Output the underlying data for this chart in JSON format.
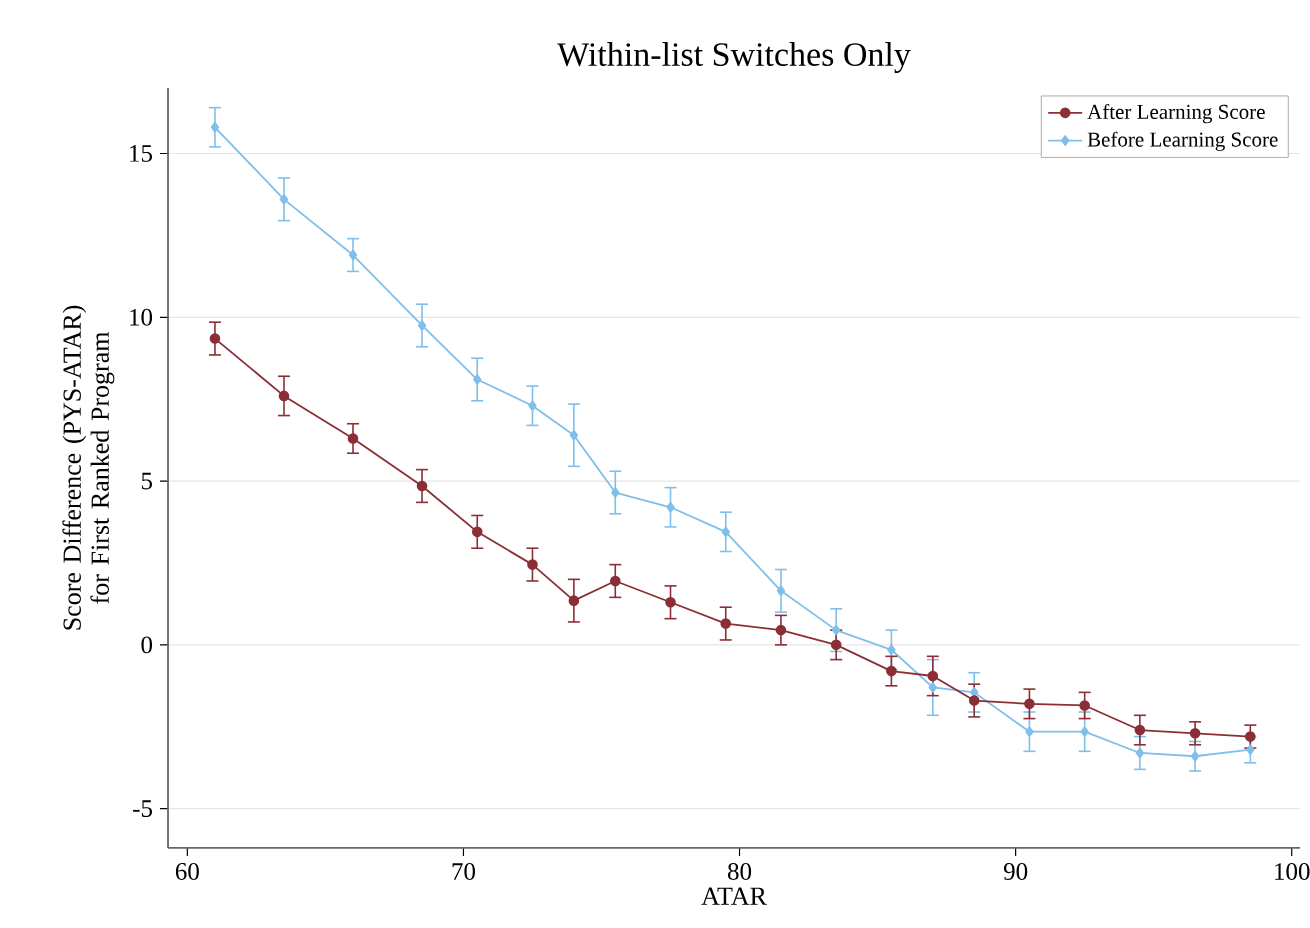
{
  "chart_data": {
    "type": "line",
    "title": "Within-list Switches Only",
    "xlabel": "ATAR",
    "ylabel": "Score Difference (PYS-ATAR) for First Ranked Program",
    "x": [
      61,
      63.5,
      66,
      68.5,
      70.5,
      72.5,
      74,
      75.5,
      77.5,
      79.5,
      81.5,
      83.5,
      85.5,
      87,
      88.5,
      90.5,
      92.5,
      94.5,
      96.5,
      98.5
    ],
    "series": [
      {
        "name": "After Learning Score",
        "color": "#8b2e35",
        "marker": "circle",
        "values": [
          9.35,
          7.6,
          6.3,
          4.85,
          3.45,
          2.45,
          1.35,
          1.95,
          1.3,
          0.65,
          0.45,
          0.0,
          -0.8,
          -0.95,
          -1.7,
          -1.8,
          -1.85,
          -2.6,
          -2.7,
          -2.8
        ],
        "errors": [
          0.5,
          0.6,
          0.45,
          0.5,
          0.5,
          0.5,
          0.65,
          0.5,
          0.5,
          0.5,
          0.45,
          0.45,
          0.45,
          0.6,
          0.5,
          0.45,
          0.4,
          0.45,
          0.35,
          0.35
        ]
      },
      {
        "name": "Before Learning Score",
        "color": "#7fbfea",
        "marker": "diamond",
        "values": [
          15.8,
          13.6,
          11.9,
          9.75,
          8.1,
          7.3,
          6.4,
          4.65,
          4.2,
          3.45,
          1.65,
          0.45,
          -0.15,
          -1.3,
          -1.45,
          -2.65,
          -2.65,
          -3.3,
          -3.4,
          -3.2
        ],
        "errors": [
          0.6,
          0.65,
          0.5,
          0.65,
          0.65,
          0.6,
          0.95,
          0.65,
          0.6,
          0.6,
          0.65,
          0.65,
          0.6,
          0.85,
          0.6,
          0.6,
          0.6,
          0.5,
          0.45,
          0.4
        ]
      }
    ],
    "xlim": [
      59.3,
      100.3
    ],
    "ylim": [
      -6.2,
      17
    ],
    "xticks": [
      60,
      70,
      80,
      90,
      100
    ],
    "yticks": [
      -5,
      0,
      5,
      10,
      15
    ],
    "grid": "y",
    "legend": "top right",
    "line_style": "solid"
  }
}
